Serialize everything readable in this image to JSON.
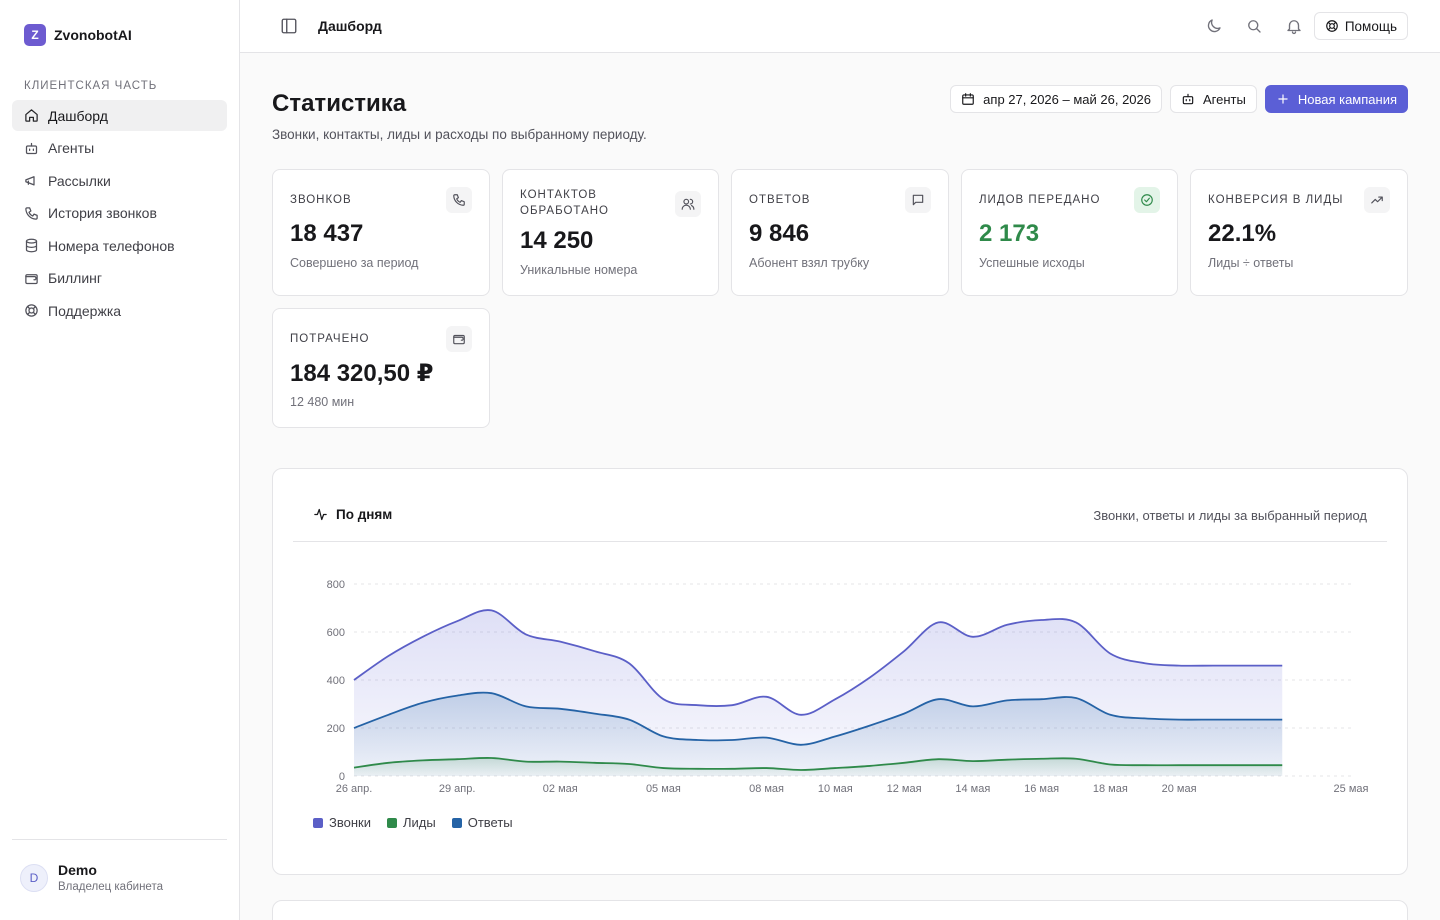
{
  "brand": {
    "logo_letter": "Z",
    "name": "ZvonobotAI"
  },
  "sidebar": {
    "section_label": "КЛИЕНТСКАЯ ЧАСТЬ",
    "items": [
      {
        "label": "Дашборд",
        "icon": "home-icon",
        "active": true
      },
      {
        "label": "Агенты",
        "icon": "bot-icon"
      },
      {
        "label": "Рассылки",
        "icon": "megaphone-icon"
      },
      {
        "label": "История звонков",
        "icon": "phone-icon"
      },
      {
        "label": "Номера телефонов",
        "icon": "database-icon"
      },
      {
        "label": "Биллинг",
        "icon": "wallet-icon"
      },
      {
        "label": "Поддержка",
        "icon": "lifebuoy-icon"
      }
    ],
    "user": {
      "initial": "D",
      "name": "Demo",
      "role": "Владелец кабинета"
    }
  },
  "topbar": {
    "breadcrumb": "Дашборд",
    "help_label": "Помощь"
  },
  "page": {
    "title": "Статистика",
    "subtitle": "Звонки, контакты, лиды и расходы по выбранному периоду.",
    "date_range": "апр 27, 2026 – май 26, 2026",
    "agents_label": "Агенты",
    "new_campaign_label": "Новая кампания"
  },
  "kpis": [
    {
      "label": "ЗВОНКОВ",
      "value": "18 437",
      "note": "Совершено за период",
      "icon": "phone-icon"
    },
    {
      "label": "КОНТАКТОВ ОБРАБОТАНО",
      "value": "14 250",
      "note": "Уникальные номера",
      "icon": "users-icon"
    },
    {
      "label": "ОТВЕТОВ",
      "value": "9 846",
      "note": "Абонент взял трубку",
      "icon": "message-icon"
    },
    {
      "label": "ЛИДОВ ПЕРЕДАНО",
      "value": "2 173",
      "note": "Успешные исходы",
      "icon": "check-circle-icon",
      "accent": "#2f8a4a"
    },
    {
      "label": "КОНВЕРСИЯ В ЛИДЫ",
      "value": "22.1%",
      "note": "Лиды ÷ ответы",
      "icon": "trending-up-icon"
    },
    {
      "label": "ПОТРАЧЕНО",
      "value": "184 320,50 ₽",
      "note": "12 480 мин",
      "icon": "wallet-icon"
    }
  ],
  "chart_header": {
    "title": "По дням",
    "subtitle": "Звонки, ответы и лиды за выбранный период"
  },
  "chart_data": {
    "type": "area",
    "ylim": [
      0,
      800
    ],
    "yticks": [
      0,
      200,
      400,
      600,
      800
    ],
    "xlabels": [
      "26 апр.",
      "29 апр.",
      "02 мая",
      "05 мая",
      "08 мая",
      "10 мая",
      "12 мая",
      "14 мая",
      "16 мая",
      "18 мая",
      "20 мая",
      "25 мая"
    ],
    "xlabel_days": [
      0,
      3,
      6,
      9,
      12,
      14,
      16,
      18,
      20,
      22,
      24,
      29
    ],
    "x_days": [
      0,
      1,
      2,
      3,
      4,
      5,
      6,
      7,
      8,
      9,
      10,
      11,
      12,
      13,
      14,
      15,
      16,
      17,
      18,
      19,
      20,
      21,
      22,
      23,
      24,
      25,
      26,
      27
    ],
    "series": [
      {
        "name": "Звонки",
        "color": "#5b5fc7",
        "values": [
          400,
          500,
          580,
          645,
          690,
          590,
          560,
          520,
          470,
          320,
          295,
          295,
          330,
          255,
          320,
          410,
          520,
          640,
          580,
          630,
          650,
          640,
          510,
          470,
          460,
          460,
          460,
          460
        ]
      },
      {
        "name": "Ответы",
        "color": "#2563a6",
        "values": [
          200,
          255,
          305,
          335,
          345,
          290,
          280,
          260,
          235,
          165,
          150,
          150,
          160,
          130,
          165,
          210,
          260,
          320,
          290,
          315,
          320,
          325,
          255,
          240,
          235,
          235,
          235,
          235
        ]
      },
      {
        "name": "Лиды",
        "color": "#2f8a4a",
        "values": [
          35,
          55,
          65,
          70,
          75,
          60,
          60,
          55,
          50,
          33,
          30,
          30,
          33,
          25,
          33,
          42,
          55,
          70,
          62,
          68,
          72,
          72,
          48,
          45,
          45,
          45,
          45,
          45
        ]
      }
    ]
  },
  "legend": [
    {
      "name": "Звонки",
      "color": "#5b5fc7"
    },
    {
      "name": "Лиды",
      "color": "#2f8a4a"
    },
    {
      "name": "Ответы",
      "color": "#2563a6"
    }
  ]
}
